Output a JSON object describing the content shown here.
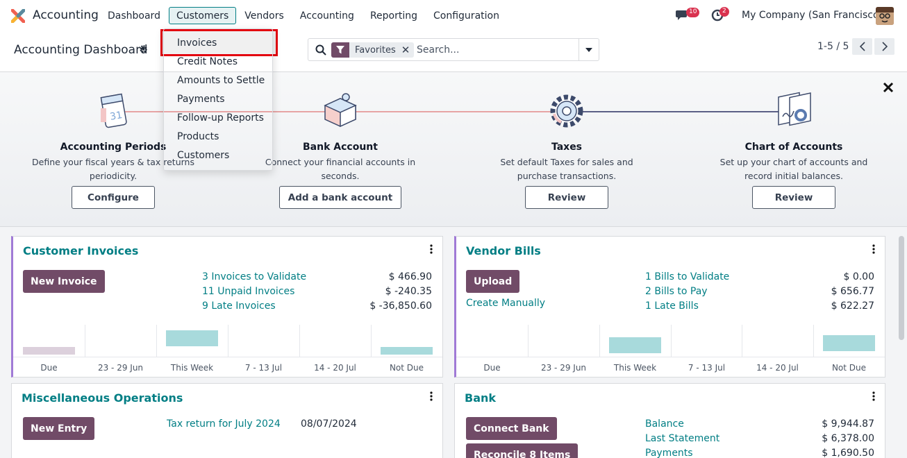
{
  "navbar": {
    "app_name": "Accounting",
    "menu": [
      "Dashboard",
      "Customers",
      "Vendors",
      "Accounting",
      "Reporting",
      "Configuration"
    ],
    "active_menu": "Customers",
    "messages_count": "10",
    "activities_count": "2",
    "company": "My Company (San Francisco)",
    "icons": {
      "logo": "odoo-logo-icon",
      "chat": "chat-icon",
      "activity": "clock-icon"
    }
  },
  "control_panel": {
    "title": "Accounting Dashboard",
    "facet": "Favorites",
    "search_placeholder": "Search...",
    "pager": "1-5 / 5"
  },
  "customers_menu": {
    "items": [
      "Invoices",
      "Credit Notes",
      "Amounts to Settle",
      "Payments",
      "Follow-up Reports",
      "Products",
      "Customers"
    ],
    "highlighted": "Invoices"
  },
  "onboarding": {
    "steps": [
      {
        "title": "Accounting Periods",
        "desc": "Define your fiscal years & tax returns periodicity.",
        "button": "Configure",
        "icon": "calendar-icon"
      },
      {
        "title": "Bank Account",
        "desc": "Connect your financial accounts in seconds.",
        "button": "Add a bank account",
        "icon": "puzzle-icon"
      },
      {
        "title": "Taxes",
        "desc": "Set default Taxes for sales and purchase transactions.",
        "button": "Review",
        "icon": "gear-icon"
      },
      {
        "title": "Chart of Accounts",
        "desc": "Set up your chart of accounts and record initial balances.",
        "button": "Review",
        "icon": "documents-icon"
      }
    ],
    "colors": {
      "done": "#e7a4a4",
      "pending": "#5b5f86"
    }
  },
  "cards": {
    "customer_invoices": {
      "title": "Customer Invoices",
      "button": "New Invoice",
      "rows": [
        {
          "label": "3 Invoices to Validate",
          "amount": "$ 466.90"
        },
        {
          "label": "11 Unpaid Invoices",
          "amount": "$ -240.35"
        },
        {
          "label": "9 Late Invoices",
          "amount": "$ -36,850.60"
        }
      ],
      "chart": {
        "categories": [
          "Due",
          "23 - 29 Jun",
          "This Week",
          "7 - 13 Jul",
          "14 - 20 Jul",
          "Not Due"
        ],
        "levels": [
          0.3,
          0,
          0.6,
          0,
          0,
          0.3
        ],
        "colors": [
          "#dcd0dc",
          "",
          "#a8dadc",
          "",
          "",
          "#a8dadc"
        ]
      }
    },
    "vendor_bills": {
      "title": "Vendor Bills",
      "button": "Upload",
      "link": "Create Manually",
      "rows": [
        {
          "label": "1 Bills to Validate",
          "amount": "$ 0.00"
        },
        {
          "label": "2 Bills to Pay",
          "amount": "$ 656.77"
        },
        {
          "label": "1 Late Bills",
          "amount": "$ 622.27"
        }
      ],
      "chart": {
        "categories": [
          "Due",
          "23 - 29 Jun",
          "This Week",
          "7 - 13 Jul",
          "14 - 20 Jul",
          "Not Due"
        ],
        "levels": [
          0,
          0,
          0.4,
          0,
          0,
          0.45
        ],
        "colors": [
          "",
          "",
          "#a8dadc",
          "",
          "",
          "#a8dadc"
        ]
      }
    },
    "misc": {
      "title": "Miscellaneous Operations",
      "button": "New Entry",
      "link": "Tax return for July 2024",
      "date": "08/07/2024"
    },
    "bank": {
      "title": "Bank",
      "button": "Connect Bank",
      "button2": "Reconcile 8 Items",
      "rows": [
        {
          "label": "Balance",
          "amount": "$ 9,944.87"
        },
        {
          "label": "Last Statement",
          "amount": "$ 6,378.00"
        },
        {
          "label": "Payments",
          "amount": "$ 1,690.50"
        }
      ]
    }
  }
}
